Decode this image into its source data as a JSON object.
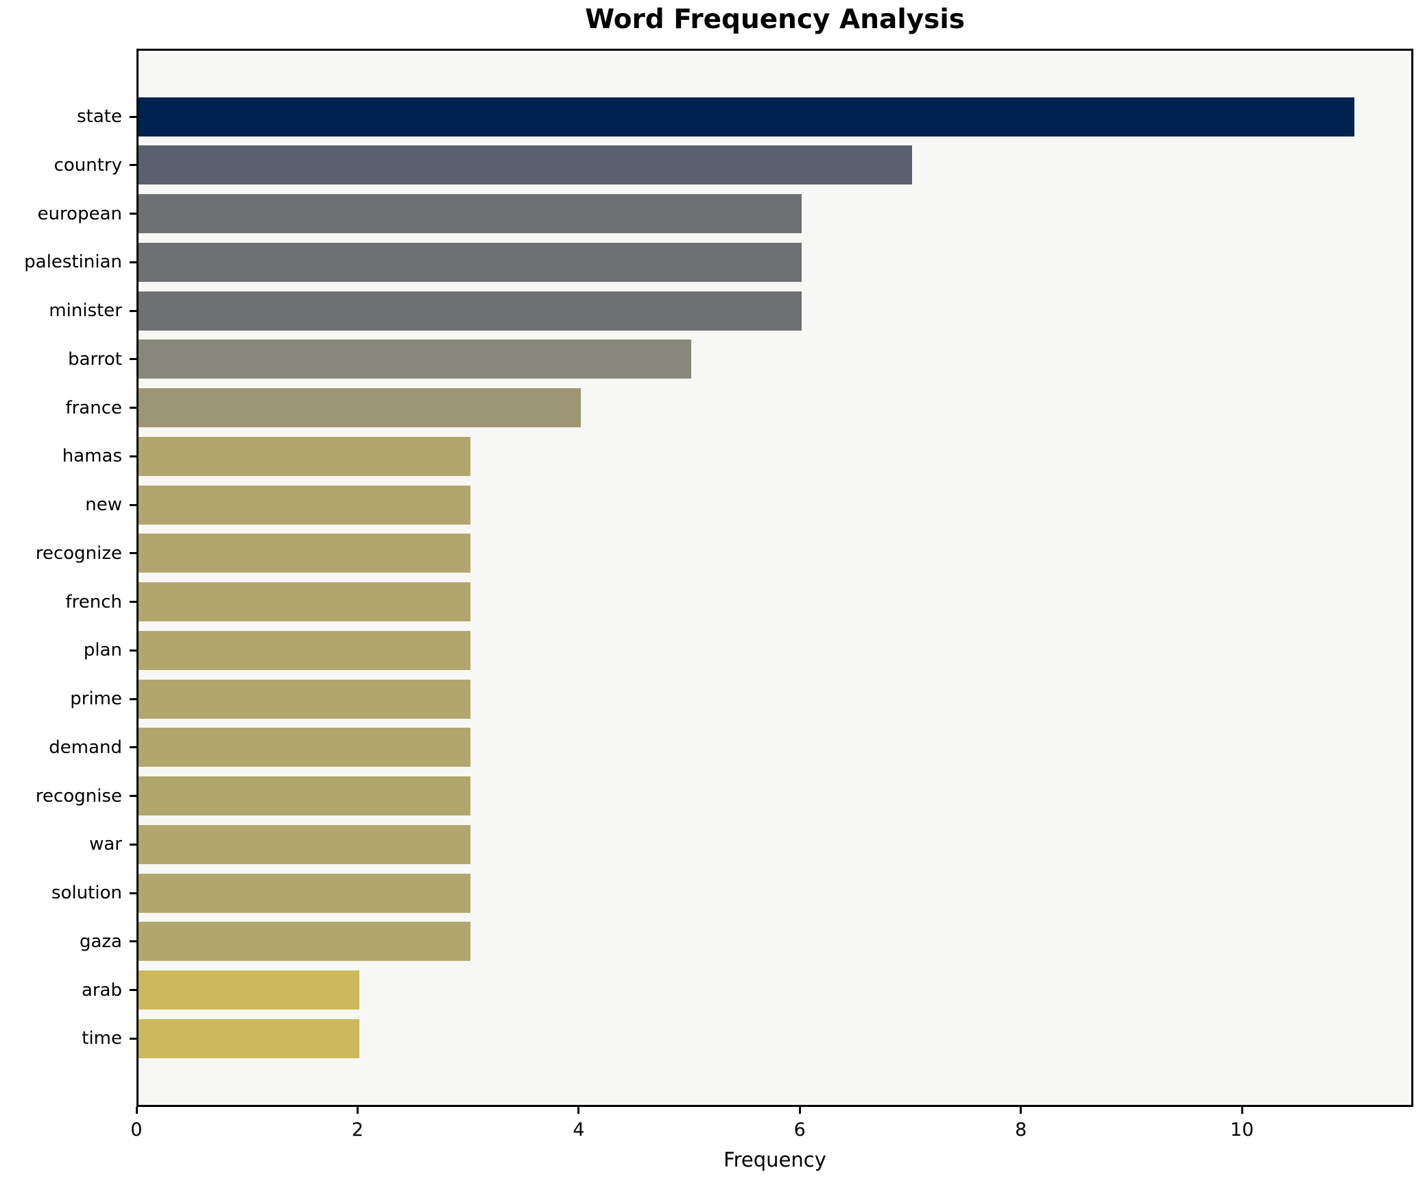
{
  "figure": {
    "title": "Word Frequency Analysis",
    "background_color": "#ffffff",
    "plot_background_color": "#f7f7f5",
    "spine_color": "#000000",
    "text_color": "#000000"
  },
  "chart_data": {
    "type": "bar",
    "orientation": "horizontal",
    "title": "Word Frequency Analysis",
    "xlabel": "Frequency",
    "ylabel": "",
    "grid": false,
    "legend_position": "none",
    "xlim": [
      0,
      11.55
    ],
    "xticks": [
      "0",
      "2",
      "4",
      "6",
      "8",
      "10"
    ],
    "xtick_values": [
      0,
      2,
      4,
      6,
      8,
      10
    ],
    "categories": [
      "state",
      "country",
      "european",
      "palestinian",
      "minister",
      "barrot",
      "france",
      "hamas",
      "new",
      "recognize",
      "french",
      "plan",
      "prime",
      "demand",
      "recognise",
      "war",
      "solution",
      "gaza",
      "arab",
      "time"
    ],
    "values": [
      11,
      7,
      6,
      6,
      6,
      5,
      4,
      3,
      3,
      3,
      3,
      3,
      3,
      3,
      3,
      3,
      3,
      3,
      2,
      2
    ],
    "bar_colors": [
      "#00224e",
      "#5b6070",
      "#6f7073",
      "#6f7073",
      "#6f7073",
      "#87887b",
      "#9d9674",
      "#b1a76c",
      "#b1a76c",
      "#b1a76c",
      "#b1a76c",
      "#b1a76c",
      "#b1a76c",
      "#b1a76c",
      "#b1a76c",
      "#b1a76c",
      "#b1a76c",
      "#b1a76c",
      "#cbb95d",
      "#cbb95d"
    ],
    "colormap": "cividis"
  }
}
